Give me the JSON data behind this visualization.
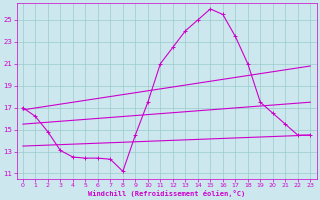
{
  "bg_color": "#cce8ee",
  "grid_color": "#99cccc",
  "line_color": "#cc00cc",
  "xlabel": "Windchill (Refroidissement éolien,°C)",
  "xlim": [
    -0.5,
    23.5
  ],
  "ylim": [
    10.5,
    26.5
  ],
  "yticks": [
    11,
    13,
    15,
    17,
    19,
    21,
    23,
    25
  ],
  "xticks": [
    0,
    1,
    2,
    3,
    4,
    5,
    6,
    7,
    8,
    9,
    10,
    11,
    12,
    13,
    14,
    15,
    16,
    17,
    18,
    19,
    20,
    21,
    22,
    23
  ],
  "series": [
    {
      "x": [
        0,
        1,
        2,
        3,
        4,
        5,
        6,
        7,
        8,
        9,
        10,
        11,
        12,
        13,
        14,
        15,
        16,
        17,
        18,
        19,
        20,
        21,
        22,
        23
      ],
      "y": [
        17.0,
        16.2,
        14.8,
        13.1,
        12.5,
        12.4,
        12.4,
        12.3,
        11.2,
        14.5,
        17.5,
        21.0,
        22.5,
        24.0,
        25.0,
        26.0,
        25.5,
        23.5,
        21.0,
        17.5,
        16.5,
        15.5,
        14.5,
        14.5
      ],
      "marker": "+",
      "lw": 0.8
    },
    {
      "x": [
        0,
        23
      ],
      "y": [
        16.8,
        20.8
      ],
      "marker": null,
      "lw": 0.8
    },
    {
      "x": [
        0,
        23
      ],
      "y": [
        15.5,
        17.5
      ],
      "marker": null,
      "lw": 0.8
    },
    {
      "x": [
        0,
        23
      ],
      "y": [
        13.5,
        14.5
      ],
      "marker": null,
      "lw": 0.8
    }
  ]
}
